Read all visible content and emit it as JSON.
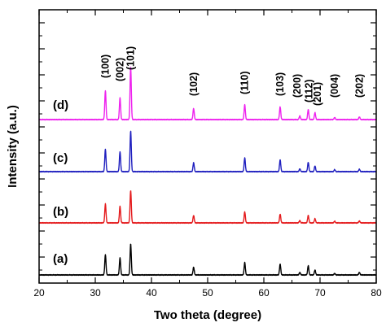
{
  "chart_data": {
    "type": "line",
    "xlabel": "Two theta (degree)",
    "ylabel": "Intensity (a.u.)",
    "xlim": [
      20,
      80
    ],
    "xticks": [
      20,
      30,
      40,
      50,
      60,
      70,
      80
    ],
    "yticks_shown": false,
    "stacked_offset": true,
    "series": [
      {
        "label": "(a)",
        "color": "#000000",
        "baseline": 0,
        "peaks": [
          [
            31.8,
            66
          ],
          [
            34.4,
            55
          ],
          [
            36.3,
            100
          ],
          [
            47.5,
            25
          ],
          [
            56.6,
            40
          ],
          [
            62.9,
            35
          ],
          [
            66.4,
            8
          ],
          [
            67.9,
            30
          ],
          [
            69.1,
            16
          ],
          [
            72.6,
            5
          ],
          [
            77.0,
            8
          ]
        ]
      },
      {
        "label": "(b)",
        "color": "#e41a1c",
        "baseline": 1,
        "peaks": [
          [
            31.8,
            58
          ],
          [
            34.4,
            51
          ],
          [
            36.3,
            100
          ],
          [
            47.5,
            23
          ],
          [
            56.6,
            34
          ],
          [
            62.9,
            27
          ],
          [
            66.4,
            7
          ],
          [
            67.9,
            23
          ],
          [
            69.1,
            13
          ],
          [
            72.6,
            5
          ],
          [
            77.0,
            6
          ]
        ]
      },
      {
        "label": "(c)",
        "color": "#1f1fbf",
        "baseline": 2,
        "peaks": [
          [
            31.8,
            55
          ],
          [
            34.4,
            49
          ],
          [
            36.3,
            100
          ],
          [
            47.5,
            22
          ],
          [
            56.6,
            34
          ],
          [
            62.9,
            29
          ],
          [
            66.4,
            7
          ],
          [
            67.9,
            23
          ],
          [
            69.1,
            14
          ],
          [
            72.6,
            5
          ],
          [
            77.0,
            6
          ]
        ]
      },
      {
        "label": "(d)",
        "color": "#ee22ee",
        "baseline": 3,
        "peaks": [
          [
            31.8,
            55
          ],
          [
            34.4,
            41
          ],
          [
            36.3,
            100
          ],
          [
            47.5,
            21
          ],
          [
            56.6,
            28
          ],
          [
            62.9,
            24
          ],
          [
            66.4,
            7
          ],
          [
            67.9,
            19
          ],
          [
            69.1,
            13
          ],
          [
            72.6,
            4
          ],
          [
            77.0,
            5
          ]
        ]
      }
    ],
    "annotations": [
      {
        "text": "(100)",
        "x": 31.8
      },
      {
        "text": "(002)",
        "x": 34.4
      },
      {
        "text": "(101)",
        "x": 36.3
      },
      {
        "text": "(102)",
        "x": 47.5
      },
      {
        "text": "(110)",
        "x": 56.6
      },
      {
        "text": "(103)",
        "x": 62.9
      },
      {
        "text": "(200)",
        "x": 66.4
      },
      {
        "text": "(112)",
        "x": 67.9
      },
      {
        "text": "(201)",
        "x": 69.1
      },
      {
        "text": "(004)",
        "x": 72.6
      },
      {
        "text": "(202)",
        "x": 77.0
      }
    ]
  }
}
